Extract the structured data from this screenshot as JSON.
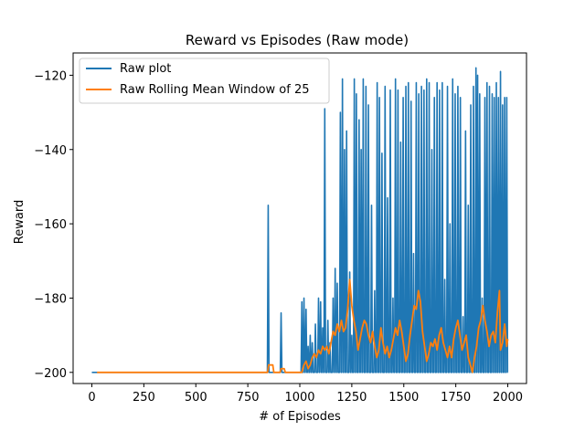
{
  "chart_data": {
    "type": "line",
    "title": "Reward vs Episodes (Raw mode)",
    "xlabel": "# of Episodes",
    "ylabel": "Reward",
    "xlim": [
      -90,
      2090
    ],
    "ylim": [
      -203,
      -114
    ],
    "xticks": [
      0,
      250,
      500,
      750,
      1000,
      1250,
      1500,
      1750,
      2000
    ],
    "yticks": [
      -200,
      -180,
      -160,
      -140,
      -120
    ],
    "grid": false,
    "legend_position": "top-left",
    "series": [
      {
        "name": "Raw plot",
        "color": "#1f77b4",
        "spikes": [
          [
            848,
            -155
          ],
          [
            910,
            -184
          ],
          [
            1010,
            -181
          ],
          [
            1020,
            -180
          ],
          [
            1030,
            -183
          ],
          [
            1040,
            -193
          ],
          [
            1050,
            -190
          ],
          [
            1060,
            -192
          ],
          [
            1075,
            -187
          ],
          [
            1090,
            -180
          ],
          [
            1100,
            -181
          ],
          [
            1110,
            -188
          ],
          [
            1120,
            -129
          ],
          [
            1135,
            -186
          ],
          [
            1145,
            -192
          ],
          [
            1160,
            -180
          ],
          [
            1170,
            -172
          ],
          [
            1180,
            -176
          ],
          [
            1195,
            -130
          ],
          [
            1205,
            -121
          ],
          [
            1215,
            -140
          ],
          [
            1225,
            -135
          ],
          [
            1240,
            -173
          ],
          [
            1250,
            -190
          ],
          [
            1262,
            -121
          ],
          [
            1272,
            -125
          ],
          [
            1285,
            -132
          ],
          [
            1295,
            -140
          ],
          [
            1305,
            -121
          ],
          [
            1318,
            -123
          ],
          [
            1330,
            -128
          ],
          [
            1345,
            -155
          ],
          [
            1360,
            -178
          ],
          [
            1372,
            -122
          ],
          [
            1383,
            -126
          ],
          [
            1395,
            -141
          ],
          [
            1410,
            -123
          ],
          [
            1422,
            -153
          ],
          [
            1435,
            -124
          ],
          [
            1448,
            -180
          ],
          [
            1460,
            -121
          ],
          [
            1472,
            -124
          ],
          [
            1485,
            -138
          ],
          [
            1497,
            -126
          ],
          [
            1510,
            -123
          ],
          [
            1522,
            -122
          ],
          [
            1535,
            -127
          ],
          [
            1547,
            -168
          ],
          [
            1560,
            -122
          ],
          [
            1572,
            -125
          ],
          [
            1585,
            -123
          ],
          [
            1597,
            -124
          ],
          [
            1610,
            -121
          ],
          [
            1622,
            -122
          ],
          [
            1635,
            -140
          ],
          [
            1647,
            -126
          ],
          [
            1660,
            -122
          ],
          [
            1672,
            -124
          ],
          [
            1685,
            -122
          ],
          [
            1697,
            -175
          ],
          [
            1710,
            -123
          ],
          [
            1722,
            -160
          ],
          [
            1735,
            -121
          ],
          [
            1747,
            -125
          ],
          [
            1760,
            -123
          ],
          [
            1772,
            -126
          ],
          [
            1785,
            -185
          ],
          [
            1797,
            -135
          ],
          [
            1810,
            -155
          ],
          [
            1822,
            -128
          ],
          [
            1835,
            -123
          ],
          [
            1847,
            -118
          ],
          [
            1855,
            -120
          ],
          [
            1865,
            -125
          ],
          [
            1877,
            -180
          ],
          [
            1890,
            -126
          ],
          [
            1900,
            -122
          ],
          [
            1912,
            -123
          ],
          [
            1925,
            -125
          ],
          [
            1935,
            -126
          ],
          [
            1945,
            -122
          ],
          [
            1955,
            -126
          ],
          [
            1965,
            -119
          ],
          [
            1975,
            -128
          ],
          [
            1985,
            -126
          ],
          [
            1995,
            -126
          ]
        ]
      },
      {
        "name": "Raw Rolling Mean Window of 25",
        "color": "#ff7f0e",
        "points": [
          [
            25,
            -200
          ],
          [
            845,
            -200
          ],
          [
            850,
            -198
          ],
          [
            870,
            -198
          ],
          [
            875,
            -200
          ],
          [
            905,
            -200
          ],
          [
            910,
            -199
          ],
          [
            925,
            -199
          ],
          [
            930,
            -200
          ],
          [
            1010,
            -200
          ],
          [
            1020,
            -198
          ],
          [
            1030,
            -197
          ],
          [
            1040,
            -199
          ],
          [
            1050,
            -198
          ],
          [
            1060,
            -196
          ],
          [
            1070,
            -195
          ],
          [
            1080,
            -196
          ],
          [
            1090,
            -194
          ],
          [
            1100,
            -195
          ],
          [
            1110,
            -193
          ],
          [
            1120,
            -194
          ],
          [
            1130,
            -193
          ],
          [
            1140,
            -195
          ],
          [
            1150,
            -192
          ],
          [
            1160,
            -189
          ],
          [
            1170,
            -190
          ],
          [
            1180,
            -187
          ],
          [
            1190,
            -189
          ],
          [
            1200,
            -186
          ],
          [
            1210,
            -189
          ],
          [
            1220,
            -188
          ],
          [
            1230,
            -183
          ],
          [
            1240,
            -175
          ],
          [
            1250,
            -182
          ],
          [
            1260,
            -186
          ],
          [
            1270,
            -189
          ],
          [
            1280,
            -194
          ],
          [
            1290,
            -191
          ],
          [
            1300,
            -188
          ],
          [
            1310,
            -186
          ],
          [
            1320,
            -187
          ],
          [
            1330,
            -190
          ],
          [
            1340,
            -192
          ],
          [
            1350,
            -189
          ],
          [
            1360,
            -193
          ],
          [
            1370,
            -196
          ],
          [
            1380,
            -194
          ],
          [
            1390,
            -188
          ],
          [
            1400,
            -192
          ],
          [
            1410,
            -195
          ],
          [
            1420,
            -193
          ],
          [
            1430,
            -196
          ],
          [
            1440,
            -194
          ],
          [
            1450,
            -191
          ],
          [
            1460,
            -188
          ],
          [
            1470,
            -190
          ],
          [
            1480,
            -186
          ],
          [
            1490,
            -189
          ],
          [
            1500,
            -193
          ],
          [
            1510,
            -197
          ],
          [
            1520,
            -195
          ],
          [
            1530,
            -190
          ],
          [
            1540,
            -186
          ],
          [
            1550,
            -182
          ],
          [
            1560,
            -183
          ],
          [
            1570,
            -178
          ],
          [
            1580,
            -181
          ],
          [
            1590,
            -189
          ],
          [
            1600,
            -193
          ],
          [
            1610,
            -197
          ],
          [
            1620,
            -195
          ],
          [
            1630,
            -192
          ],
          [
            1640,
            -193
          ],
          [
            1650,
            -191
          ],
          [
            1660,
            -194
          ],
          [
            1670,
            -190
          ],
          [
            1680,
            -188
          ],
          [
            1690,
            -192
          ],
          [
            1700,
            -194
          ],
          [
            1710,
            -196
          ],
          [
            1720,
            -193
          ],
          [
            1730,
            -196
          ],
          [
            1740,
            -191
          ],
          [
            1750,
            -188
          ],
          [
            1760,
            -186
          ],
          [
            1770,
            -190
          ],
          [
            1780,
            -194
          ],
          [
            1790,
            -192
          ],
          [
            1800,
            -190
          ],
          [
            1810,
            -196
          ],
          [
            1820,
            -198
          ],
          [
            1830,
            -200
          ],
          [
            1840,
            -196
          ],
          [
            1850,
            -193
          ],
          [
            1860,
            -188
          ],
          [
            1870,
            -186
          ],
          [
            1880,
            -182
          ],
          [
            1890,
            -186
          ],
          [
            1900,
            -189
          ],
          [
            1910,
            -193
          ],
          [
            1920,
            -190
          ],
          [
            1930,
            -189
          ],
          [
            1940,
            -192
          ],
          [
            1950,
            -184
          ],
          [
            1960,
            -178
          ],
          [
            1965,
            -194
          ],
          [
            1975,
            -192
          ],
          [
            1985,
            -187
          ],
          [
            1995,
            -193
          ],
          [
            2000,
            -191
          ]
        ]
      }
    ]
  }
}
